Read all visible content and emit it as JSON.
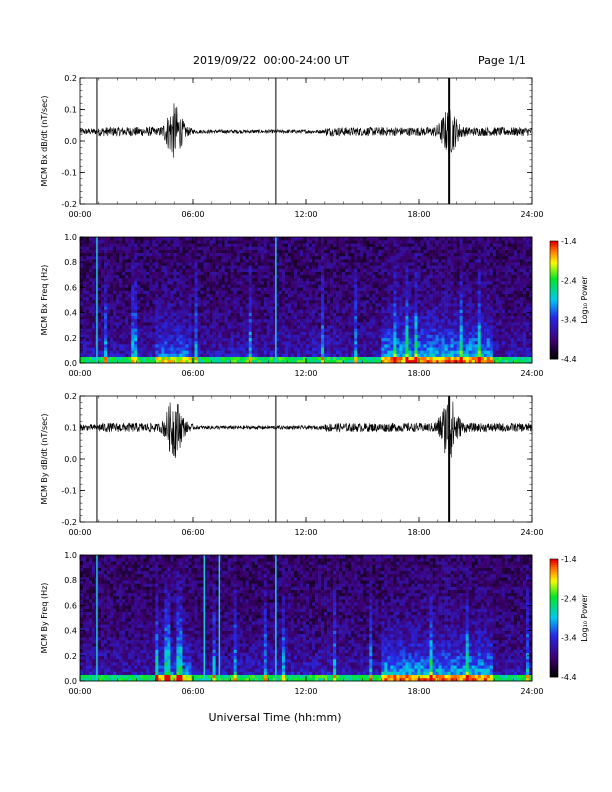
{
  "header": {
    "date_range": "2019/09/22  00:00-24:00 UT",
    "page": "Page 1/1"
  },
  "chart_data": [
    {
      "type": "line",
      "ylabel": "MCM Bx dB/dt (nT/sec)",
      "ylim": [
        -0.2,
        0.2
      ],
      "yticks": [
        "-0.2",
        "-0.1",
        "0.0",
        "0.1",
        "0.2"
      ],
      "xticks": [
        "00:00",
        "06:00",
        "12:00",
        "18:00",
        "24:00"
      ],
      "xlim": [
        0,
        24
      ],
      "series_color": "#000000",
      "baseline": 0.03,
      "events": [
        {
          "time_h": 5.0,
          "label": "burst",
          "peak": 0.12,
          "trough": -0.09
        },
        {
          "time_h": 19.6,
          "label": "disturbance",
          "peak": 0.1,
          "trough": -0.03
        }
      ],
      "vertical_lines_h": [
        0.9,
        10.4,
        19.6
      ]
    },
    {
      "type": "heatmap",
      "ylabel": "MCM Bx Freq (Hz)",
      "ylim": [
        0.0,
        1.0
      ],
      "yticks": [
        "0.0",
        "0.2",
        "0.4",
        "0.6",
        "0.8",
        "1.0"
      ],
      "xticks": [
        "00:00",
        "06:00",
        "12:00",
        "18:00",
        "24:00"
      ],
      "xlim": [
        0,
        24
      ],
      "colorbar": {
        "label": "Log₁₀ Power",
        "ticks": [
          "-1.4",
          "-2.4",
          "-3.4",
          "-4.4"
        ],
        "range": [
          -4.4,
          -1.4
        ]
      },
      "bright_lines_h": [
        0.9,
        10.4
      ]
    },
    {
      "type": "line",
      "ylabel": "MCM By dB/dt (nT/sec)",
      "ylim": [
        -0.2,
        0.2
      ],
      "yticks": [
        "-0.2",
        "-0.1",
        "0.0",
        "0.1",
        "0.2"
      ],
      "xticks": [
        "00:00",
        "06:00",
        "12:00",
        "18:00",
        "24:00"
      ],
      "xlim": [
        0,
        24
      ],
      "series_color": "#000000",
      "baseline": 0.1,
      "events": [
        {
          "time_h": 5.0,
          "label": "burst",
          "peak": 0.2,
          "trough": -0.03
        },
        {
          "time_h": 19.6,
          "label": "disturbance",
          "peak": 0.2,
          "trough": 0.0
        }
      ],
      "vertical_lines_h": [
        0.9,
        10.4,
        19.6
      ]
    },
    {
      "type": "heatmap",
      "ylabel": "MCM By Freq (Hz)",
      "ylim": [
        0.0,
        1.0
      ],
      "yticks": [
        "0.0",
        "0.2",
        "0.4",
        "0.6",
        "0.8",
        "1.0"
      ],
      "xticks": [
        "00:00",
        "06:00",
        "12:00",
        "18:00",
        "24:00"
      ],
      "xlim": [
        0,
        24
      ],
      "colorbar": {
        "label": "Log₁₀ Power",
        "ticks": [
          "-1.4",
          "-2.4",
          "-3.4",
          "-4.4"
        ],
        "range": [
          -4.4,
          -1.4
        ]
      },
      "bright_lines_h": [
        0.9,
        6.6,
        7.4,
        10.4
      ]
    }
  ],
  "footer": {
    "xlabel": "Universal Time (hh:mm)"
  }
}
